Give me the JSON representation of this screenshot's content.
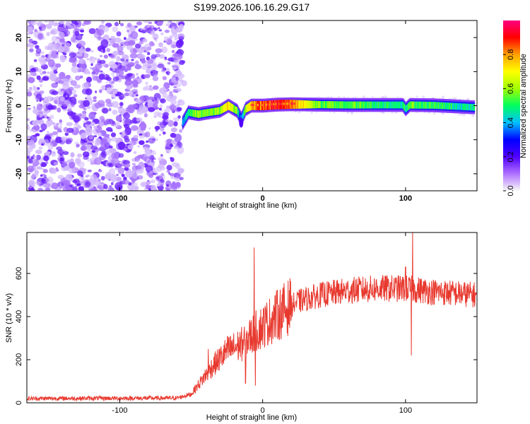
{
  "title": "S199.2026.106.16.29.G17",
  "chart_data": [
    {
      "type": "heatmap",
      "name": "spectrogram",
      "xlabel": "Height of straight line (km)",
      "ylabel": "Frequency (Hz)",
      "xlim": [
        -165,
        150
      ],
      "ylim": [
        -25,
        25
      ],
      "xticks": [
        -100,
        0,
        100
      ],
      "yticks": [
        -20,
        -10,
        0,
        10,
        20
      ],
      "noise_region_x": [
        -165,
        -56
      ],
      "ridge": [
        {
          "x": -56,
          "y": -5,
          "v": 0.35
        },
        {
          "x": -52,
          "y": -2,
          "v": 0.5
        },
        {
          "x": -45,
          "y": -2.5,
          "v": 0.6
        },
        {
          "x": -38,
          "y": -2,
          "v": 0.55
        },
        {
          "x": -30,
          "y": -1.5,
          "v": 0.6
        },
        {
          "x": -24,
          "y": 0,
          "v": 0.75
        },
        {
          "x": -18,
          "y": -1.5,
          "v": 0.55
        },
        {
          "x": -15,
          "y": -4,
          "v": 0.3
        },
        {
          "x": -12,
          "y": -1,
          "v": 0.6
        },
        {
          "x": -8,
          "y": 0,
          "v": 0.8
        },
        {
          "x": 0,
          "y": 0,
          "v": 0.85
        },
        {
          "x": 10,
          "y": 0.3,
          "v": 0.9
        },
        {
          "x": 20,
          "y": 0.4,
          "v": 0.85
        },
        {
          "x": 40,
          "y": 0.3,
          "v": 0.55
        },
        {
          "x": 60,
          "y": 0.2,
          "v": 0.55
        },
        {
          "x": 80,
          "y": 0.2,
          "v": 0.5
        },
        {
          "x": 98,
          "y": 0.2,
          "v": 0.5
        },
        {
          "x": 100,
          "y": -1,
          "v": 0.45
        },
        {
          "x": 103,
          "y": 0.2,
          "v": 0.55
        },
        {
          "x": 120,
          "y": 0.1,
          "v": 0.5
        },
        {
          "x": 148,
          "y": -0.5,
          "v": 0.45
        }
      ],
      "colorbar": {
        "label": "Normalized spectral amplitude",
        "range": [
          0,
          1
        ],
        "ticks": [
          0.0,
          0.2,
          0.4,
          0.6,
          0.8
        ],
        "tick_labels": [
          "0.0",
          "0.2",
          "0.4",
          "0.6",
          "0.8"
        ],
        "colors": [
          "#f8f8f8",
          "#b070ff",
          "#5000ff",
          "#0000ff",
          "#00c0ff",
          "#00ff60",
          "#a0ff00",
          "#ffff00",
          "#ffa000",
          "#ff0000",
          "#ff0080"
        ]
      }
    },
    {
      "type": "line",
      "name": "snr",
      "xlabel": "Height of straight line (km)",
      "ylabel": "SNR (10 * v/v)",
      "xlim": [
        -165,
        150
      ],
      "ylim": [
        0,
        790
      ],
      "xticks": [
        -100,
        0,
        100
      ],
      "yticks": [
        0,
        200,
        400,
        600
      ],
      "color": "#e8392f",
      "trend": [
        {
          "x": -165,
          "y": 20
        },
        {
          "x": -60,
          "y": 22
        },
        {
          "x": -50,
          "y": 40
        },
        {
          "x": -42,
          "y": 110
        },
        {
          "x": -35,
          "y": 170
        },
        {
          "x": -25,
          "y": 240
        },
        {
          "x": -15,
          "y": 270
        },
        {
          "x": -5,
          "y": 330
        },
        {
          "x": 5,
          "y": 380
        },
        {
          "x": 15,
          "y": 430
        },
        {
          "x": 25,
          "y": 470
        },
        {
          "x": 40,
          "y": 500
        },
        {
          "x": 60,
          "y": 520
        },
        {
          "x": 80,
          "y": 530
        },
        {
          "x": 100,
          "y": 530
        },
        {
          "x": 120,
          "y": 515
        },
        {
          "x": 150,
          "y": 500
        }
      ],
      "spikes": [
        {
          "x": -38,
          "y": 250
        },
        {
          "x": -12,
          "y": 90
        },
        {
          "x": -6,
          "y": 720
        },
        {
          "x": -5,
          "y": 80
        },
        {
          "x": 100,
          "y": 630
        },
        {
          "x": 104,
          "y": 220
        },
        {
          "x": 105,
          "y": 790
        }
      ]
    }
  ]
}
